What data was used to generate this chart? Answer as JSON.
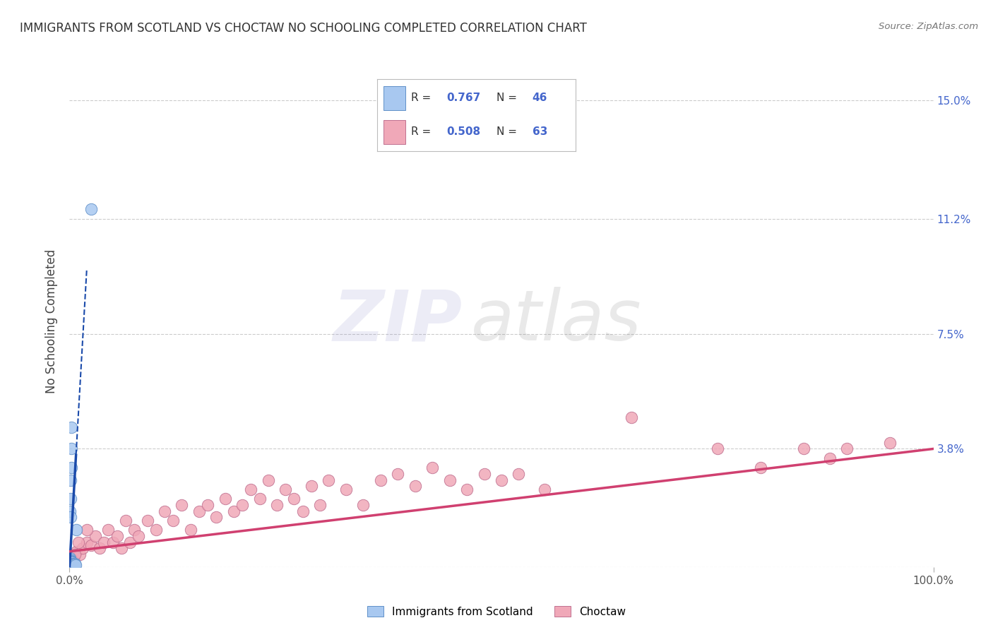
{
  "title": "IMMIGRANTS FROM SCOTLAND VS CHOCTAW NO SCHOOLING COMPLETED CORRELATION CHART",
  "source": "Source: ZipAtlas.com",
  "ylabel": "No Schooling Completed",
  "xlim": [
    0,
    100
  ],
  "ylim": [
    0,
    15.8
  ],
  "yticks": [
    0,
    3.8,
    7.5,
    11.2,
    15.0
  ],
  "ytick_labels": [
    "",
    "3.8%",
    "7.5%",
    "11.2%",
    "15.0%"
  ],
  "xtick_labels": [
    "0.0%",
    "100.0%"
  ],
  "series1_scatter_color": "#a8c8f0",
  "series1_scatter_edge": "#6090c8",
  "series1_line_color": "#1a4aaa",
  "series2_scatter_color": "#f0a8b8",
  "series2_scatter_edge": "#c07090",
  "series2_line_color": "#d04070",
  "bg_color": "#ffffff",
  "grid_color": "#cccccc",
  "R1": "0.767",
  "N1": "46",
  "R2": "0.508",
  "N2": "63",
  "label1": "Immigrants from Scotland",
  "label2": "Choctaw",
  "title_color": "#333333",
  "source_color": "#777777",
  "tick_color": "#4466cc",
  "scatter1_x": [
    0.05,
    0.05,
    0.06,
    0.07,
    0.08,
    0.08,
    0.09,
    0.1,
    0.1,
    0.1,
    0.11,
    0.12,
    0.12,
    0.13,
    0.15,
    0.15,
    0.16,
    0.17,
    0.18,
    0.2,
    0.2,
    0.22,
    0.23,
    0.25,
    0.27,
    0.28,
    0.3,
    0.3,
    0.35,
    0.38,
    0.4,
    0.45,
    0.5,
    0.55,
    0.6,
    0.65,
    0.7,
    0.08,
    0.1,
    0.12,
    0.15,
    0.18,
    0.2,
    0.25,
    0.8,
    2.5
  ],
  "scatter1_y": [
    0.2,
    0.3,
    0.15,
    0.1,
    0.12,
    0.25,
    0.08,
    0.1,
    0.2,
    0.05,
    0.08,
    0.12,
    0.18,
    0.06,
    0.08,
    0.15,
    0.1,
    0.06,
    0.12,
    0.08,
    0.18,
    0.06,
    0.1,
    0.08,
    0.1,
    0.12,
    0.06,
    0.15,
    0.08,
    0.1,
    0.08,
    0.1,
    0.06,
    0.08,
    0.1,
    0.08,
    0.06,
    1.8,
    2.2,
    1.6,
    2.8,
    3.2,
    3.8,
    4.5,
    1.2,
    11.5
  ],
  "scatter2_x": [
    0.3,
    0.5,
    0.8,
    1.2,
    1.5,
    2.0,
    2.5,
    3.0,
    3.5,
    4.0,
    4.5,
    5.0,
    5.5,
    6.0,
    6.5,
    7.0,
    7.5,
    8.0,
    9.0,
    10.0,
    11.0,
    12.0,
    13.0,
    14.0,
    15.0,
    16.0,
    17.0,
    18.0,
    19.0,
    20.0,
    21.0,
    22.0,
    23.0,
    24.0,
    25.0,
    26.0,
    27.0,
    28.0,
    29.0,
    30.0,
    32.0,
    34.0,
    36.0,
    38.0,
    40.0,
    42.0,
    44.0,
    46.0,
    48.0,
    50.0,
    52.0,
    55.0,
    65.0,
    75.0,
    80.0,
    85.0,
    88.0,
    90.0,
    95.0,
    0.4,
    0.6,
    1.0,
    2.0
  ],
  "scatter2_y": [
    0.3,
    0.2,
    0.5,
    0.4,
    0.6,
    0.8,
    0.7,
    1.0,
    0.6,
    0.8,
    1.2,
    0.8,
    1.0,
    0.6,
    1.5,
    0.8,
    1.2,
    1.0,
    1.5,
    1.2,
    1.8,
    1.5,
    2.0,
    1.2,
    1.8,
    2.0,
    1.6,
    2.2,
    1.8,
    2.0,
    2.5,
    2.2,
    2.8,
    2.0,
    2.5,
    2.2,
    1.8,
    2.6,
    2.0,
    2.8,
    2.5,
    2.0,
    2.8,
    3.0,
    2.6,
    3.2,
    2.8,
    2.5,
    3.0,
    2.8,
    3.0,
    2.5,
    4.8,
    3.8,
    3.2,
    3.8,
    3.5,
    3.8,
    4.0,
    0.2,
    0.4,
    0.8,
    1.2
  ],
  "trend1_x0": 0.0,
  "trend1_y0": 0.0,
  "trend1_slope": 4.8,
  "trend2_x0": 0.0,
  "trend2_y0": 0.5,
  "trend2_slope": 0.033
}
